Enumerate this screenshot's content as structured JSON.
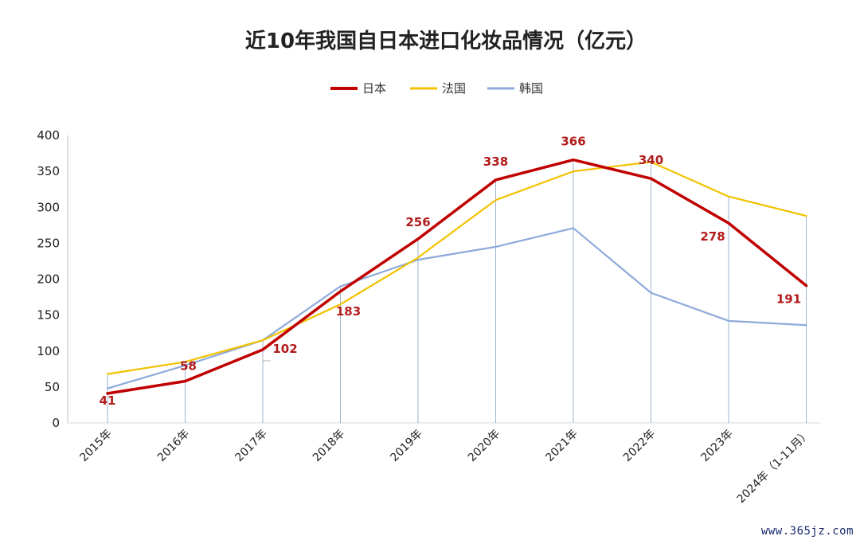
{
  "colors": {
    "japan": "#c00000",
    "france": "#f2c200",
    "korea": "#8eaadb",
    "label": "#b31b1b"
  },
  "watermark": "www.365jz.com",
  "chart_data": {
    "type": "line",
    "title": "近10年我国自日本进口化妆品情况（亿元）",
    "xlabel": "",
    "ylabel": "",
    "ylim": [
      0,
      400
    ],
    "yticks": [
      0,
      50,
      100,
      150,
      200,
      250,
      300,
      350,
      400
    ],
    "legend_position": "top",
    "grid": false,
    "categories": [
      "2015年",
      "2016年",
      "2017年",
      "2018年",
      "2019年",
      "2020年",
      "2021年",
      "2022年",
      "2023年",
      "2024年（1-11月）"
    ],
    "series": [
      {
        "name": "日本",
        "key": "japan",
        "values": [
          41,
          58,
          102,
          183,
          256,
          338,
          366,
          340,
          278,
          191
        ],
        "labels": [
          "41",
          "58",
          "102",
          "183",
          "256",
          "338",
          "366",
          "340",
          "278",
          "191"
        ]
      },
      {
        "name": "法国",
        "key": "france",
        "values": [
          68,
          85,
          115,
          165,
          230,
          310,
          350,
          363,
          315,
          288
        ]
      },
      {
        "name": "韩国",
        "key": "korea",
        "values": [
          48,
          80,
          115,
          190,
          227,
          245,
          271,
          181,
          142,
          136
        ]
      }
    ]
  }
}
